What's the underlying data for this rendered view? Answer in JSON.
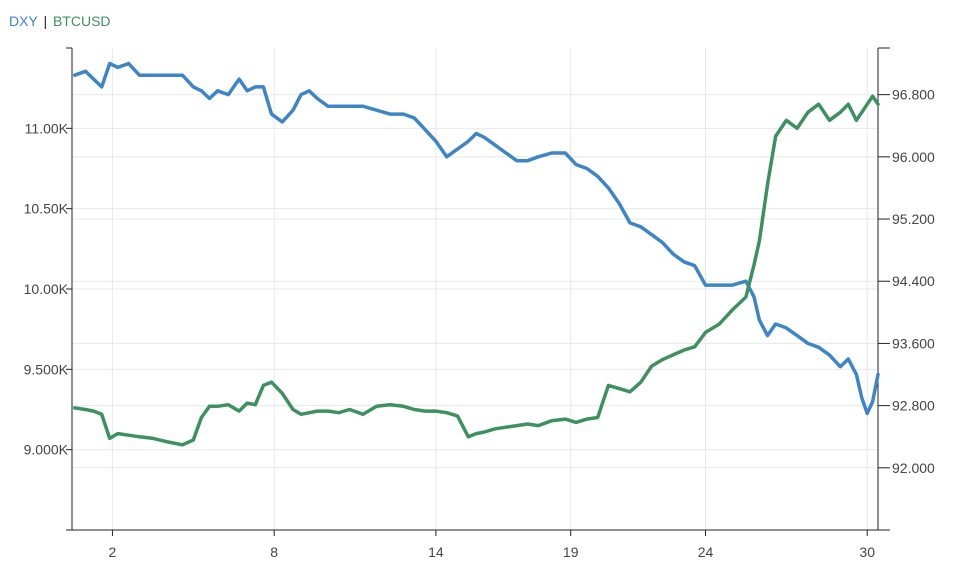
{
  "legend": {
    "series1": "DXY",
    "separator": "|",
    "series2": "BTCUSD"
  },
  "colors": {
    "dxy": "#3d85c6",
    "btcusd": "#3d9161",
    "grid": "#e8e8e8",
    "axis": "#222222",
    "text": "#444444"
  },
  "chart_data": {
    "type": "line",
    "title": "",
    "xlabel": "",
    "x_ticks": [
      2,
      8,
      14,
      19,
      24,
      30
    ],
    "xlim": [
      0.5,
      30.4
    ],
    "left_axis": {
      "ticks": [
        "9.000K",
        "9.500K",
        "10.00K",
        "10.50K",
        "11.00K"
      ],
      "tick_values": [
        9000,
        9500,
        10000,
        10500,
        11000
      ],
      "ylim": [
        8500,
        11500
      ]
    },
    "right_axis": {
      "ticks": [
        "92.000",
        "92.800",
        "93.600",
        "94.400",
        "95.200",
        "96.000",
        "96.800"
      ],
      "tick_values": [
        92.0,
        92.8,
        93.6,
        94.4,
        95.2,
        96.0,
        96.8
      ],
      "ylim": [
        91.2,
        97.4
      ]
    },
    "grid": true,
    "legend_position": "top-left",
    "series": [
      {
        "name": "DXY",
        "axis": "right",
        "x": [
          0.6,
          1.0,
          1.3,
          1.6,
          1.9,
          2.2,
          2.6,
          3.0,
          3.5,
          4.0,
          4.6,
          5.0,
          5.3,
          5.6,
          5.9,
          6.3,
          6.7,
          7.0,
          7.3,
          7.6,
          7.9,
          8.3,
          8.7,
          9.0,
          9.3,
          9.6,
          10.0,
          10.4,
          10.8,
          11.3,
          11.8,
          12.3,
          12.8,
          13.2,
          13.6,
          14.0,
          14.4,
          14.8,
          15.2,
          15.5,
          15.8,
          16.2,
          16.6,
          17.0,
          17.4,
          17.8,
          18.3,
          18.8,
          19.2,
          19.6,
          20.0,
          20.4,
          20.8,
          21.2,
          21.6,
          22.0,
          22.4,
          22.8,
          23.2,
          23.6,
          24.0,
          24.5,
          25.0,
          25.5,
          25.8,
          26.0,
          26.3,
          26.6,
          27.0,
          27.4,
          27.8,
          28.2,
          28.6,
          29.0,
          29.3,
          29.6,
          29.8,
          30.0,
          30.2,
          30.4
        ],
        "values": [
          97.05,
          97.1,
          97.0,
          96.9,
          97.2,
          97.15,
          97.2,
          97.05,
          97.05,
          97.05,
          97.05,
          96.9,
          96.85,
          96.75,
          96.85,
          96.8,
          97.0,
          96.85,
          96.9,
          96.9,
          96.55,
          96.45,
          96.6,
          96.8,
          96.85,
          96.75,
          96.65,
          96.65,
          96.65,
          96.65,
          96.6,
          96.55,
          96.55,
          96.5,
          96.35,
          96.2,
          96.0,
          96.1,
          96.2,
          96.3,
          96.25,
          96.15,
          96.05,
          95.95,
          95.95,
          96.0,
          96.05,
          96.05,
          95.9,
          95.85,
          95.75,
          95.6,
          95.4,
          95.15,
          95.1,
          95.0,
          94.9,
          94.75,
          94.65,
          94.6,
          94.35,
          94.35,
          94.35,
          94.4,
          94.2,
          93.9,
          93.7,
          93.85,
          93.8,
          93.7,
          93.6,
          93.55,
          93.45,
          93.3,
          93.4,
          93.2,
          92.9,
          92.7,
          92.85,
          93.2
        ]
      },
      {
        "name": "BTCUSD",
        "axis": "left",
        "x": [
          0.6,
          1.0,
          1.3,
          1.6,
          1.9,
          2.2,
          2.6,
          3.0,
          3.5,
          4.0,
          4.6,
          5.0,
          5.3,
          5.6,
          5.9,
          6.3,
          6.7,
          7.0,
          7.3,
          7.6,
          7.9,
          8.3,
          8.7,
          9.0,
          9.3,
          9.6,
          10.0,
          10.4,
          10.8,
          11.3,
          11.8,
          12.3,
          12.8,
          13.2,
          13.6,
          14.0,
          14.4,
          14.8,
          15.2,
          15.5,
          15.8,
          16.2,
          16.6,
          17.0,
          17.4,
          17.8,
          18.3,
          18.8,
          19.2,
          19.6,
          20.0,
          20.4,
          20.8,
          21.2,
          21.6,
          22.0,
          22.4,
          22.8,
          23.2,
          23.6,
          24.0,
          24.5,
          25.0,
          25.5,
          25.8,
          26.0,
          26.3,
          26.6,
          27.0,
          27.4,
          27.8,
          28.2,
          28.6,
          29.0,
          29.3,
          29.6,
          29.8,
          30.0,
          30.2,
          30.4
        ],
        "values": [
          9260,
          9250,
          9240,
          9220,
          9070,
          9100,
          9090,
          9080,
          9070,
          9050,
          9030,
          9060,
          9200,
          9270,
          9270,
          9280,
          9240,
          9290,
          9280,
          9400,
          9420,
          9350,
          9250,
          9220,
          9230,
          9240,
          9240,
          9230,
          9250,
          9220,
          9270,
          9280,
          9270,
          9250,
          9240,
          9240,
          9230,
          9210,
          9080,
          9100,
          9110,
          9130,
          9140,
          9150,
          9160,
          9150,
          9180,
          9190,
          9170,
          9190,
          9200,
          9400,
          9380,
          9360,
          9420,
          9520,
          9560,
          9590,
          9620,
          9640,
          9730,
          9780,
          9870,
          9950,
          10150,
          10300,
          10650,
          10950,
          11050,
          11000,
          11100,
          11150,
          11050,
          11100,
          11150,
          11050,
          11100,
          11150,
          11200,
          11150
        ]
      }
    ]
  }
}
